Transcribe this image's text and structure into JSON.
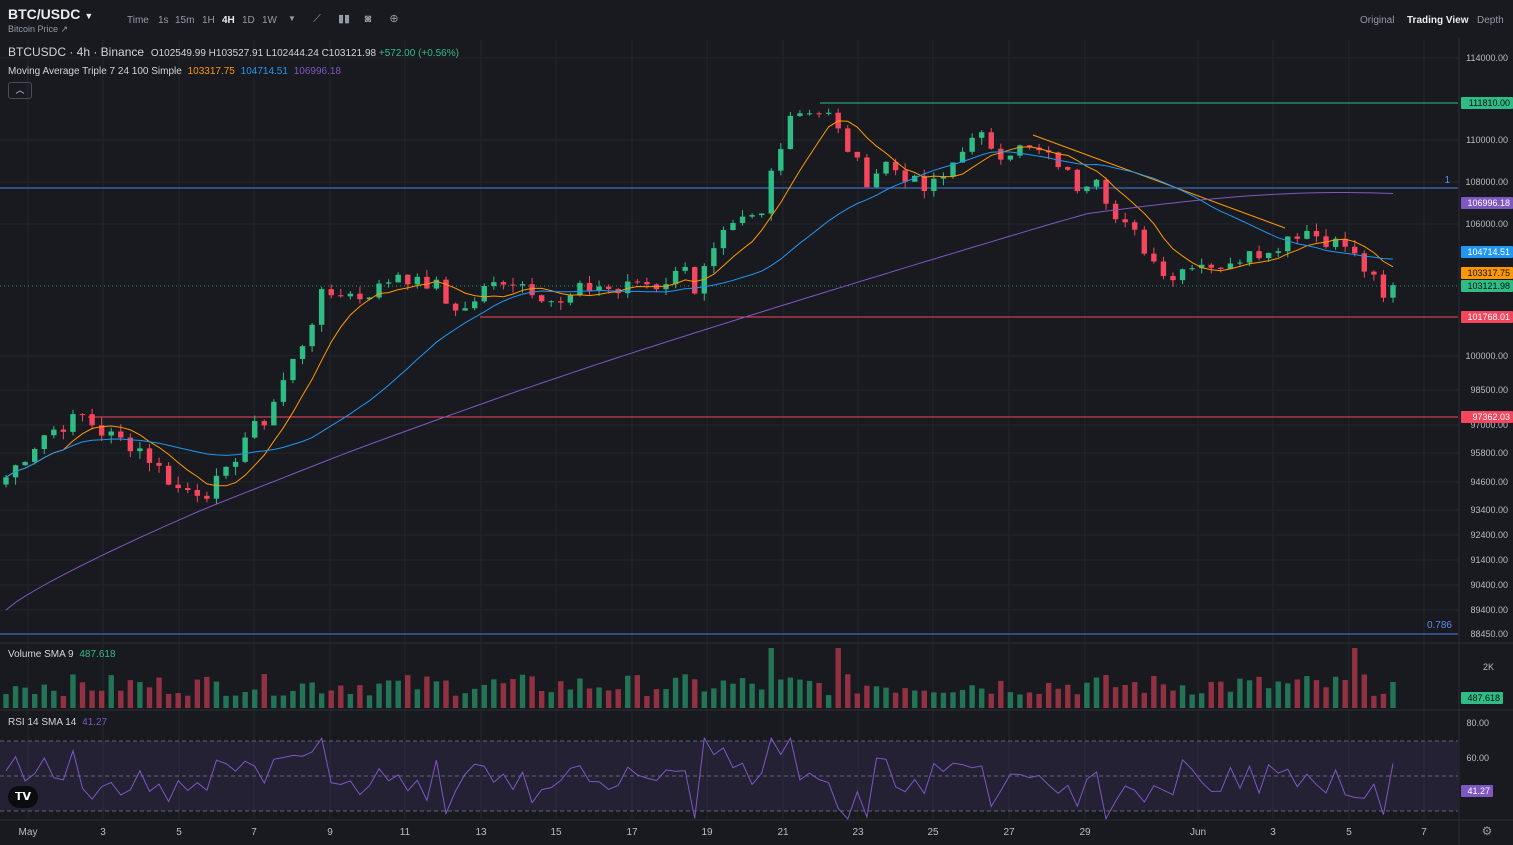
{
  "header": {
    "symbol": "BTC/USDC",
    "subtitle": "Bitcoin Price ↗",
    "timeframes": [
      "Time",
      "1s",
      "15m",
      "1H",
      "4H",
      "1D",
      "1W"
    ],
    "active_timeframe": "4H",
    "views": [
      "Original",
      "Trading View",
      "Depth"
    ],
    "active_view": "Trading View"
  },
  "legend": {
    "title": "BTCUSDC · 4h · Binance",
    "ohlc": {
      "o": "O102549.99",
      "h": "H103527.91",
      "l": "L102444.24",
      "c": "C103121.98",
      "chg": "+572.00 (+0.56%)"
    },
    "ma_title": "Moving Average Triple 7 24 100 Simple",
    "ma7": "103317.75",
    "ma24": "104714.51",
    "ma100": "106996.18",
    "vol_title": "Volume SMA 9",
    "vol_value": "487.618",
    "rsi_title": "RSI 14 SMA 14",
    "rsi_value": "41.27"
  },
  "colors": {
    "up": "#2ebd85",
    "down": "#f6465d",
    "ma7": "#ff9800",
    "ma24": "#2196f3",
    "ma100": "#7e57c2",
    "bg": "#181a20"
  },
  "chart_data": {
    "type": "candlestick",
    "x_ticks": [
      "May",
      "3",
      "5",
      "7",
      "9",
      "11",
      "13",
      "15",
      "17",
      "19",
      "21",
      "23",
      "25",
      "27",
      "29",
      "Jun",
      "3",
      "5",
      "7"
    ],
    "price_ticks": [
      "114000.00",
      "110000.00",
      "108000.00",
      "106000.00",
      "100000.00",
      "98500.00",
      "97000.00",
      "95800.00",
      "94600.00",
      "93400.00",
      "92400.00",
      "91400.00",
      "90400.00",
      "89400.00",
      "88450.00"
    ],
    "price_badges": [
      {
        "label": "111810.00",
        "color": "#2ebd85"
      },
      {
        "label": "106996.18",
        "color": "#7e57c2"
      },
      {
        "label": "104714.51",
        "color": "#2196f3"
      },
      {
        "label": "103317.75",
        "color": "#ff9800"
      },
      {
        "label": "103121.98",
        "color": "#2ebd85"
      },
      {
        "label": "101768.01",
        "color": "#f6465d"
      },
      {
        "label": "97362.03",
        "color": "#f6465d"
      }
    ],
    "fib_labels": [
      "1",
      "0.786"
    ],
    "volume_ticks": [
      "2K"
    ],
    "volume_badge": "487.618",
    "rsi_ticks": [
      "80.00",
      "60.00"
    ],
    "rsi_badge": "41.27",
    "close_path": [
      [
        0,
        94800
      ],
      [
        4,
        96600
      ],
      [
        8,
        97400
      ],
      [
        10,
        96700
      ],
      [
        14,
        96000
      ],
      [
        18,
        94300
      ],
      [
        21,
        94200
      ],
      [
        23,
        94900
      ],
      [
        25,
        96500
      ],
      [
        27,
        97200
      ],
      [
        29,
        98900
      ],
      [
        31,
        100600
      ],
      [
        33,
        102700
      ],
      [
        35,
        102900
      ],
      [
        37,
        102700
      ],
      [
        39,
        103100
      ],
      [
        41,
        103800
      ],
      [
        43,
        103300
      ],
      [
        45,
        103200
      ],
      [
        46,
        102400
      ],
      [
        48,
        102100
      ],
      [
        50,
        103000
      ],
      [
        52,
        103500
      ],
      [
        54,
        103300
      ],
      [
        56,
        102800
      ],
      [
        58,
        102300
      ],
      [
        60,
        103000
      ],
      [
        62,
        103200
      ],
      [
        64,
        102900
      ],
      [
        66,
        103400
      ],
      [
        68,
        103200
      ],
      [
        70,
        103700
      ],
      [
        71,
        104300
      ],
      [
        72,
        103000
      ],
      [
        73,
        103900
      ],
      [
        75,
        105400
      ],
      [
        77,
        106100
      ],
      [
        79,
        106400
      ],
      [
        80,
        108500
      ],
      [
        82,
        111300
      ],
      [
        84,
        111500
      ],
      [
        86,
        111200
      ],
      [
        88,
        109600
      ],
      [
        90,
        108100
      ],
      [
        92,
        108900
      ],
      [
        94,
        108300
      ],
      [
        96,
        107600
      ],
      [
        98,
        108200
      ],
      [
        100,
        109700
      ],
      [
        102,
        110100
      ],
      [
        104,
        109400
      ],
      [
        106,
        109600
      ],
      [
        108,
        109400
      ],
      [
        110,
        108900
      ],
      [
        112,
        107800
      ],
      [
        114,
        108400
      ],
      [
        116,
        106200
      ],
      [
        118,
        105500
      ],
      [
        120,
        104300
      ],
      [
        122,
        103600
      ],
      [
        124,
        104300
      ],
      [
        126,
        104200
      ],
      [
        128,
        104000
      ],
      [
        130,
        105000
      ],
      [
        132,
        104600
      ],
      [
        134,
        105500
      ],
      [
        136,
        105700
      ],
      [
        138,
        105300
      ],
      [
        140,
        105000
      ],
      [
        141,
        104500
      ],
      [
        143,
        103400
      ],
      [
        144,
        102500
      ],
      [
        145,
        103121.98
      ]
    ],
    "candles": 145
  }
}
